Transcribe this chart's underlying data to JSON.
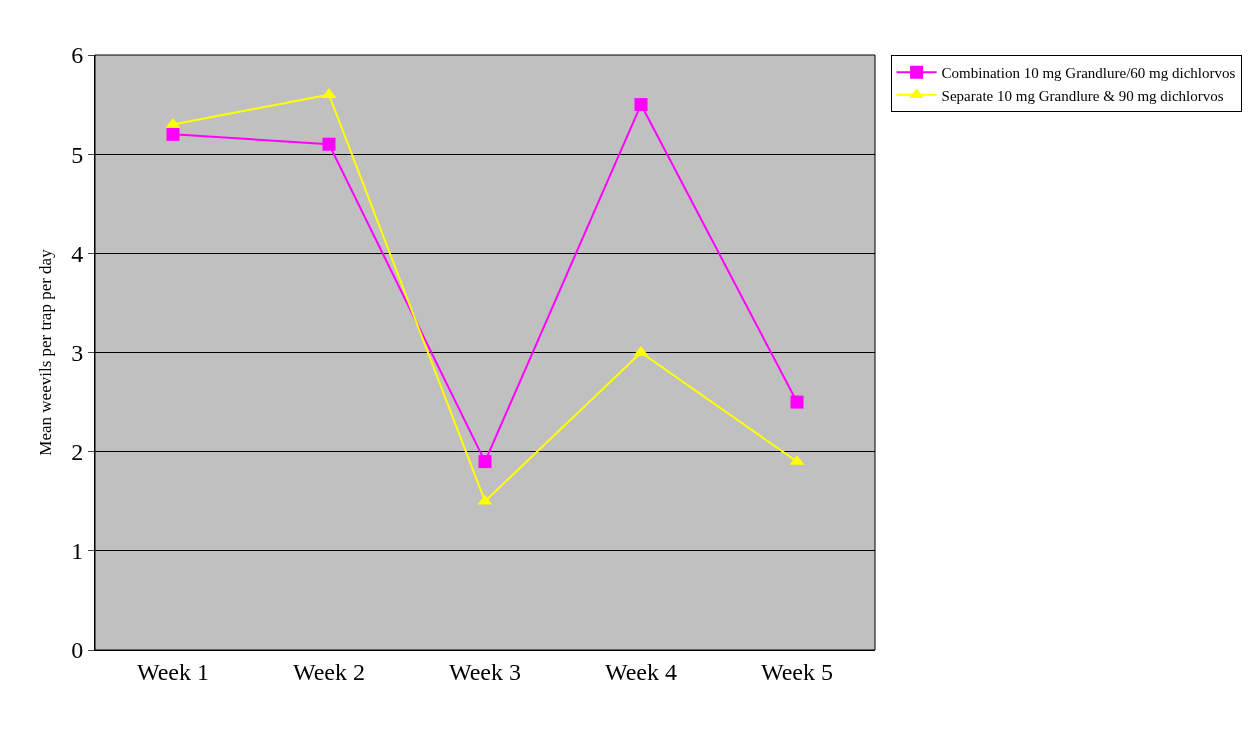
{
  "chart_data": {
    "type": "line",
    "ylabel": "Mean weevils per trap per day",
    "categories": [
      "Week 1",
      "Week 2",
      "Week 3",
      "Week 4",
      "Week 5"
    ],
    "series": [
      {
        "name": "Combination 10 mg Grandlure/60 mg dichlorvos",
        "color": "#ff00ff",
        "marker": "square",
        "values": [
          5.2,
          5.1,
          1.9,
          5.5,
          2.5
        ]
      },
      {
        "name": "Separate 10 mg Grandlure & 90 mg dichlorvos",
        "color": "#ffff00",
        "marker": "triangle",
        "values": [
          5.3,
          5.6,
          1.5,
          3.0,
          1.9
        ]
      }
    ],
    "ylim": [
      0,
      6
    ],
    "yticks": [
      0,
      1,
      2,
      3,
      4,
      5,
      6
    ],
    "grid": "y",
    "legend": "top right"
  }
}
